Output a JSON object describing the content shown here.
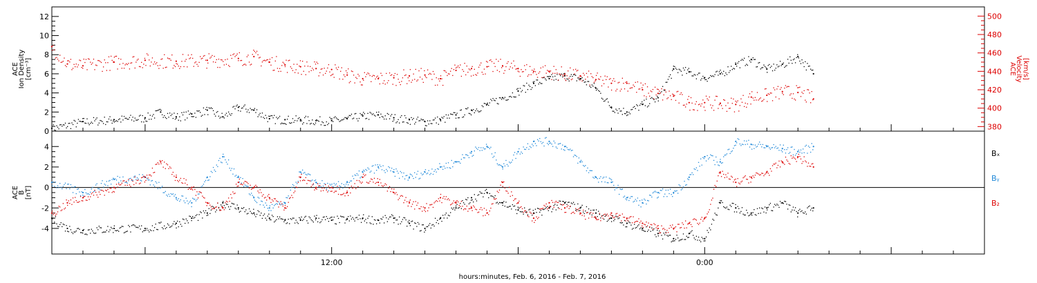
{
  "chart_data": [
    {
      "type": "scatter",
      "panel": "top",
      "xlabel": "hours:minutes, Feb.  6, 2016 - Feb.  7, 2016",
      "x_tick_labels": [
        "12:00",
        "0:00"
      ],
      "x_unit": "hours from 00:00 Feb 6, 2016",
      "xlim": [
        3,
        33
      ],
      "left_axis": {
        "label_lines": [
          "ACE",
          "Ion Density",
          "[cm⁻³]"
        ],
        "ylim": [
          0,
          13
        ],
        "ticks": [
          0,
          2,
          4,
          6,
          8,
          10,
          12
        ],
        "color": "#000000"
      },
      "right_axis": {
        "label_lines": [
          "ACE",
          "Velocity",
          "[km/s]"
        ],
        "ylim": [
          375,
          510
        ],
        "ticks": [
          380,
          400,
          420,
          440,
          460,
          480,
          500
        ],
        "color": "#dd0000"
      },
      "series": [
        {
          "axis": "left",
          "color": "#000000",
          "x": [
            3.0,
            4.0,
            5.0,
            6.0,
            6.5,
            7.0,
            7.5,
            8.0,
            8.5,
            9.0,
            9.5,
            10.0,
            10.5,
            11.0,
            11.5,
            12.0,
            12.5,
            13.0,
            13.5,
            14.0,
            14.5,
            15.0,
            15.5,
            16.0,
            16.5,
            17.0,
            17.5,
            18.0,
            18.5,
            19.0,
            19.5,
            20.0,
            20.5,
            21.0,
            21.5,
            22.0,
            22.5,
            23.0,
            23.5,
            24.0,
            24.5,
            25.0,
            25.5,
            26.0,
            26.5,
            27.0,
            27.5
          ],
          "y": [
            0.3,
            1.0,
            1.2,
            1.4,
            2.0,
            1.5,
            1.8,
            2.2,
            1.5,
            2.5,
            2.2,
            1.3,
            1.2,
            1.2,
            1.1,
            1.1,
            1.3,
            1.6,
            1.7,
            1.4,
            1.2,
            1.0,
            1.2,
            1.7,
            2.2,
            2.8,
            3.5,
            4.2,
            5.0,
            5.5,
            5.8,
            5.5,
            4.5,
            2.5,
            2.0,
            2.8,
            3.5,
            6.5,
            6.2,
            5.6,
            6.0,
            7.0,
            7.5,
            6.5,
            7.0,
            7.8,
            6.0
          ]
        },
        {
          "axis": "right",
          "color": "#dd0000",
          "x": [
            3.0,
            3.5,
            4.0,
            5.0,
            6.0,
            7.0,
            8.0,
            9.0,
            9.5,
            10.0,
            10.5,
            11.0,
            11.5,
            12.0,
            12.5,
            13.0,
            13.5,
            14.0,
            14.5,
            15.0,
            15.5,
            16.0,
            16.5,
            17.0,
            17.5,
            18.0,
            18.5,
            19.0,
            19.5,
            20.0,
            20.5,
            21.0,
            21.5,
            22.0,
            22.5,
            23.0,
            23.5,
            24.0,
            24.5,
            25.0,
            25.5,
            26.0,
            26.5,
            27.0,
            27.5
          ],
          "y": [
            467,
            448,
            446,
            450,
            452,
            451,
            452,
            454,
            456,
            450,
            447,
            445,
            443,
            442,
            436,
            432,
            432,
            433,
            435,
            436,
            432,
            441,
            443,
            445,
            446,
            443,
            440,
            440,
            437,
            435,
            431,
            427,
            427,
            420,
            416,
            413,
            406,
            406,
            405,
            404,
            412,
            414,
            418,
            417,
            410
          ]
        }
      ]
    },
    {
      "type": "scatter",
      "panel": "bottom",
      "xlabel": "hours:minutes, Feb.  6, 2016 - Feb.  7, 2016",
      "x_tick_labels": [
        "12:00",
        "0:00"
      ],
      "xlim": [
        3,
        33
      ],
      "left_axis": {
        "label_lines": [
          "ACE",
          "B",
          "[nT]"
        ],
        "ylim": [
          -6.5,
          5.5
        ],
        "ticks": [
          -4,
          -2,
          0,
          2,
          4
        ],
        "color": "#000000"
      },
      "zero_line": true,
      "legend": [
        "Bₓ",
        "Bᵧ",
        "B₂"
      ],
      "legend_position": "right",
      "series": [
        {
          "name": "Bₓ",
          "color": "#000000",
          "x": [
            3.0,
            3.5,
            4.0,
            5.0,
            6.0,
            7.0,
            7.5,
            8.0,
            8.5,
            9.0,
            9.5,
            10.0,
            10.5,
            11.0,
            11.5,
            12.0,
            12.5,
            13.0,
            13.5,
            14.0,
            14.5,
            15.0,
            15.5,
            16.0,
            16.5,
            17.0,
            17.5,
            18.0,
            18.5,
            19.0,
            19.5,
            20.0,
            20.5,
            21.0,
            21.5,
            22.0,
            22.5,
            23.0,
            23.5,
            24.0,
            24.5,
            25.0,
            25.5,
            26.0,
            26.5,
            27.0,
            27.5
          ],
          "y": [
            -3.0,
            -4.0,
            -4.2,
            -4.0,
            -4.0,
            -3.5,
            -3.0,
            -2.5,
            -1.5,
            -2.0,
            -2.5,
            -3.0,
            -3.2,
            -3.2,
            -3.0,
            -3.2,
            -3.1,
            -3.0,
            -3.2,
            -3.0,
            -3.5,
            -4.0,
            -3.0,
            -2.0,
            -1.0,
            -0.5,
            -1.5,
            -2.2,
            -2.5,
            -2.0,
            -1.5,
            -2.0,
            -2.5,
            -3.0,
            -3.5,
            -4.0,
            -4.5,
            -5.0,
            -4.5,
            -5.0,
            -1.5,
            -2.0,
            -2.5,
            -2.0,
            -1.5,
            -2.5,
            -2.0
          ]
        },
        {
          "name": "Bᵧ",
          "color": "#1f88d8",
          "x": [
            3.0,
            4.0,
            5.0,
            6.0,
            7.0,
            7.5,
            8.0,
            8.5,
            9.0,
            9.5,
            10.0,
            10.5,
            11.0,
            11.5,
            12.0,
            12.5,
            13.0,
            13.5,
            14.0,
            14.5,
            15.0,
            15.5,
            16.0,
            16.5,
            17.0,
            17.5,
            18.0,
            18.5,
            19.0,
            19.5,
            20.0,
            20.5,
            21.0,
            21.5,
            22.0,
            22.5,
            23.0,
            23.5,
            24.0,
            24.5,
            25.0,
            25.5,
            26.0,
            26.5,
            27.0,
            27.5
          ],
          "y": [
            0.5,
            -0.5,
            0.8,
            1.0,
            -1.0,
            -1.5,
            1.0,
            3.0,
            1.0,
            -1.0,
            -2.0,
            -1.5,
            1.5,
            0.5,
            0.0,
            0.5,
            1.5,
            2.0,
            1.5,
            1.0,
            1.5,
            2.0,
            2.5,
            3.5,
            4.0,
            2.0,
            3.5,
            4.5,
            4.5,
            4.0,
            2.5,
            1.0,
            0.5,
            -1.0,
            -1.5,
            -0.5,
            -0.5,
            1.0,
            3.0,
            2.5,
            4.5,
            4.2,
            4.0,
            3.8,
            3.5,
            4.0
          ]
        },
        {
          "name": "B₂",
          "color": "#dd0000",
          "x": [
            3.0,
            3.5,
            4.0,
            5.0,
            6.0,
            6.5,
            7.0,
            7.5,
            8.0,
            8.5,
            9.0,
            9.5,
            10.0,
            10.5,
            11.0,
            11.5,
            12.0,
            12.5,
            13.0,
            13.5,
            14.0,
            14.5,
            15.0,
            15.5,
            16.0,
            16.5,
            17.0,
            17.5,
            18.0,
            18.5,
            19.0,
            19.5,
            20.0,
            20.5,
            21.0,
            21.5,
            22.0,
            22.5,
            23.0,
            23.5,
            24.0,
            24.5,
            25.0,
            25.5,
            26.0,
            26.5,
            27.0,
            27.5
          ],
          "y": [
            -2.5,
            -1.5,
            -1.0,
            0.0,
            1.0,
            2.5,
            1.0,
            0.0,
            -1.5,
            -2.0,
            0.5,
            0.0,
            -1.0,
            -2.0,
            1.0,
            0.0,
            0.0,
            -0.5,
            1.0,
            0.5,
            -0.5,
            -1.5,
            -2.0,
            -1.0,
            -1.5,
            -2.0,
            -2.5,
            0.5,
            -1.5,
            -3.0,
            -1.5,
            -2.0,
            -2.5,
            -3.0,
            -2.5,
            -3.0,
            -3.5,
            -4.0,
            -4.0,
            -3.5,
            -3.0,
            1.5,
            0.5,
            1.0,
            1.5,
            2.5,
            3.0,
            2.0
          ]
        }
      ]
    }
  ]
}
